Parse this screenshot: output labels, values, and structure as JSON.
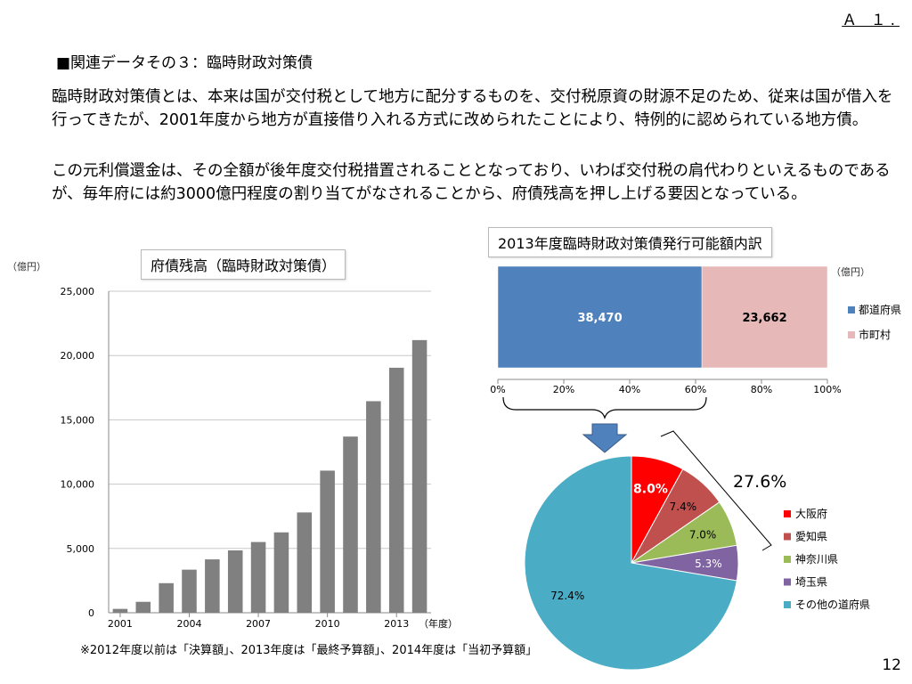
{
  "header": {
    "doc_id": "Ａ １.",
    "section_title": "■関連データその３：臨時財政対策債",
    "paragraph1": "臨時財政対策債とは、本来は国が交付税として地方に配分するものを、交付税原資の財源不足のため、従来は国が借入を行ってきたが、2001年度から地方が直接借り入れる方式に改められたことにより、特例的に認められている地方債。",
    "paragraph2": "この元利償還金は、その全額が後年度交付税措置されることとなっており、いわば交付税の肩代わりといえるものであるが、毎年府には約3000億円程度の割り当てがなされることから、府債残高を押し上げる要因となっている。"
  },
  "footer": {
    "footnote": "※2012年度以前は「決算額」、2013年度は「最終予算額」、2014年度は「当初予算額」",
    "page_number": "12"
  },
  "chart_data": [
    {
      "type": "bar",
      "title": "府債残高（臨時財政対策債）",
      "ylabel": "（億円）",
      "xlabel": "（年度）",
      "x_tick_labels": [
        "2001",
        "2004",
        "2007",
        "2010",
        "2013"
      ],
      "categories": [
        "2001",
        "2002",
        "2003",
        "2004",
        "2005",
        "2006",
        "2007",
        "2008",
        "2009",
        "2010",
        "2011",
        "2012",
        "2013",
        "2014"
      ],
      "values": [
        300,
        850,
        2300,
        3350,
        4150,
        4850,
        5500,
        6250,
        7800,
        11050,
        13700,
        16450,
        19050,
        21200
      ],
      "ylim": [
        0,
        25000
      ],
      "y_ticks": [
        "0",
        "5,000",
        "10,000",
        "15,000",
        "20,000",
        "25,000"
      ],
      "color": "#808080",
      "grid": true
    },
    {
      "type": "bar",
      "orientation": "horizontal-stacked-100",
      "title": "2013年度臨時財政対策債発行可能額内訳",
      "unit": "（億円）",
      "series": [
        {
          "name": "都道府県",
          "value": 38470,
          "label": "38,470",
          "color": "#4f81bd"
        },
        {
          "name": "市町村",
          "value": 23662,
          "label": "23,662",
          "color": "#e6b9b8"
        }
      ],
      "x_ticks": [
        "0%",
        "20%",
        "40%",
        "60%",
        "80%",
        "100%"
      ],
      "legend_position": "right"
    },
    {
      "type": "pie",
      "slices": [
        {
          "name": "大阪府",
          "value": 8.0,
          "label": "8.0%",
          "color": "#ff0000"
        },
        {
          "name": "愛知県",
          "value": 7.4,
          "label": "7.4%",
          "color": "#c0504d"
        },
        {
          "name": "神奈川県",
          "value": 7.0,
          "label": "7.0%",
          "color": "#9bbb59"
        },
        {
          "name": "埼玉県",
          "value": 5.3,
          "label": "5.3%",
          "color": "#8064a2"
        },
        {
          "name": "その他の道府県",
          "value": 72.4,
          "label": "72.4%",
          "color": "#4bacc6"
        }
      ],
      "callout_total": "27.6%",
      "legend_position": "right"
    }
  ]
}
